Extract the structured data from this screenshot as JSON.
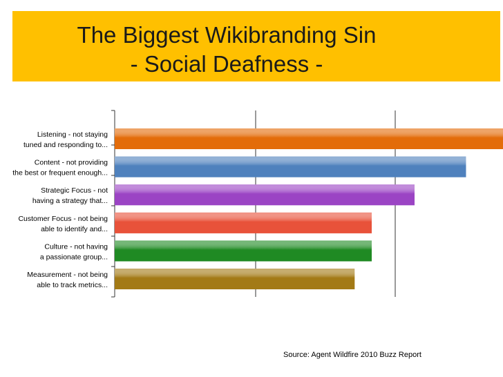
{
  "title": {
    "line1": "The Biggest Wikibranding Sin",
    "line2": "- Social Deafness -"
  },
  "source": "Source: Agent Wildfire 2010 Buzz Report",
  "colors": {
    "banner": "#ffc000",
    "axis": "#333333"
  },
  "chart_data": {
    "type": "bar",
    "orientation": "horizontal",
    "title": "",
    "xlabel": "",
    "ylabel": "",
    "xlim": [
      0,
      1
    ],
    "grid": true,
    "legend": "none",
    "categories": [
      [
        "Listening - not staying",
        "tuned and responding to..."
      ],
      [
        "Content - not providing",
        "the best or frequent enough..."
      ],
      [
        "Strategic Focus - not",
        "having a strategy that..."
      ],
      [
        "Customer Focus - not being",
        "able to identify and..."
      ],
      [
        "Culture - not having",
        "a passionate group..."
      ],
      [
        "Measurement - not being",
        "able to track metrics..."
      ]
    ],
    "values": [
      0.92,
      0.82,
      0.7,
      0.6,
      0.6,
      0.56
    ],
    "bar_colors": [
      "#e36c0a",
      "#4f81bd",
      "#9b44c4",
      "#e8523a",
      "#1f8a23",
      "#a37a16"
    ]
  }
}
